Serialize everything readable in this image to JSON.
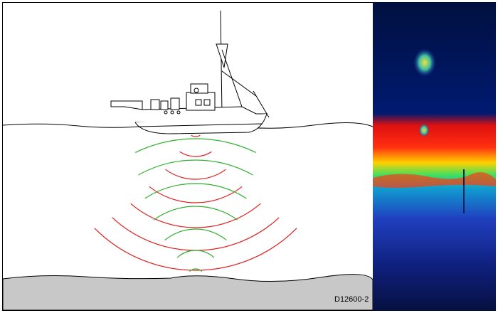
{
  "figure_id": "D12600-2"
}
